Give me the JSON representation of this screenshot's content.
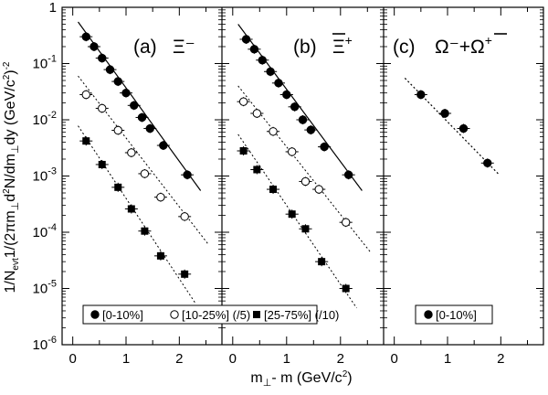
{
  "chart_data": {
    "type": "scatter",
    "scale": {
      "y": "log"
    },
    "xlim": [
      -0.2,
      2.8
    ],
    "ylim": [
      1e-06,
      1
    ],
    "x_ticks": [
      "0",
      "1",
      "2"
    ],
    "y_ticks": [
      "10^-6",
      "10^-5",
      "10^-4",
      "10^-3",
      "10^-2",
      "10^-1",
      "1"
    ],
    "xlabel": {
      "main": "m",
      "sub": "⊥",
      "rest": "- m (GeV/c",
      "sup": "2",
      "end": ")"
    },
    "ylabel": "1/N_evt 1/(2πm_⊥ d²N/dm_⊥ dy (GeV/c²)^-2",
    "panels": [
      {
        "label": "(a)",
        "particle": "Ξ⁻",
        "legend": [
          "[0-10%]",
          "[10-25%] (/5)",
          "[25-75%] (/10)"
        ],
        "series": [
          {
            "name": "[0-10%]",
            "marker": "filled-circle",
            "x": [
              0.25,
              0.4,
              0.55,
              0.7,
              0.85,
              1.0,
              1.15,
              1.3,
              1.45,
              1.7,
              2.15
            ],
            "y": [
              0.3,
              0.2,
              0.125,
              0.078,
              0.048,
              0.03,
              0.018,
              0.011,
              0.007,
              0.0035,
              0.00105
            ],
            "fit": [
              [
                0.1,
                0.55
              ],
              [
                2.4,
                0.00055
              ]
            ]
          },
          {
            "name": "[10-25%] (/5)",
            "marker": "open-circle",
            "x": [
              0.25,
              0.55,
              0.85,
              1.1,
              1.35,
              1.65,
              2.1
            ],
            "y": [
              0.028,
              0.016,
              0.0065,
              0.0026,
              0.0011,
              0.00042,
              0.00019
            ],
            "fit": [
              [
                0.1,
                0.06
              ],
              [
                2.55,
                6e-05
              ]
            ]
          },
          {
            "name": "[25-75%] (/10)",
            "marker": "filled-square",
            "x": [
              0.25,
              0.55,
              0.85,
              1.1,
              1.35,
              1.65,
              2.1
            ],
            "y": [
              0.0042,
              0.0016,
              0.00063,
              0.00026,
              0.000105,
              3.8e-05,
              1.8e-05
            ],
            "fit": [
              [
                0.1,
                0.0078
              ],
              [
                2.3,
                5.5e-06
              ]
            ]
          }
        ]
      },
      {
        "label": "(b)",
        "particle": "Ξ",
        "particle_sup": "+",
        "series": [
          {
            "name": "[0-10%]",
            "marker": "filled-circle",
            "x": [
              0.25,
              0.4,
              0.55,
              0.7,
              0.85,
              1.0,
              1.15,
              1.3,
              1.45,
              1.7,
              2.15
            ],
            "y": [
              0.27,
              0.18,
              0.115,
              0.072,
              0.045,
              0.028,
              0.017,
              0.01,
              0.0066,
              0.0033,
              0.00105
            ],
            "fit": [
              [
                0.1,
                0.5
              ],
              [
                2.4,
                0.00055
              ]
            ]
          },
          {
            "name": "[10-25%] (/5)",
            "marker": "open-circle",
            "x": [
              0.2,
              0.45,
              0.75,
              1.1,
              1.35,
              1.6,
              2.1
            ],
            "y": [
              0.021,
              0.013,
              0.0062,
              0.0027,
              0.0008,
              0.00058,
              0.00015
            ],
            "fit": [
              [
                0.1,
                0.04
              ],
              [
                2.55,
                4.5e-05
              ]
            ]
          },
          {
            "name": "[25-75%] (/10)",
            "marker": "filled-square",
            "x": [
              0.2,
              0.45,
              0.75,
              1.1,
              1.35,
              1.65,
              2.1
            ],
            "y": [
              0.0028,
              0.0013,
              0.00058,
              0.00021,
              0.000115,
              3e-05,
              1e-05
            ],
            "fit": [
              [
                0.1,
                0.0055
              ],
              [
                2.3,
                4.5e-06
              ]
            ]
          }
        ]
      },
      {
        "label": "(c)",
        "particle": "Ω⁻+Ω",
        "particle_sup": "+",
        "legend": [
          "[0-10%]"
        ],
        "series": [
          {
            "name": "[0-10%]",
            "marker": "filled-circle",
            "x": [
              0.5,
              0.95,
              1.3,
              1.75
            ],
            "y": [
              0.028,
              0.013,
              0.007,
              0.0017
            ],
            "fit": [
              [
                0.2,
                0.055
              ],
              [
                1.95,
                0.0011
              ]
            ]
          }
        ]
      }
    ]
  }
}
